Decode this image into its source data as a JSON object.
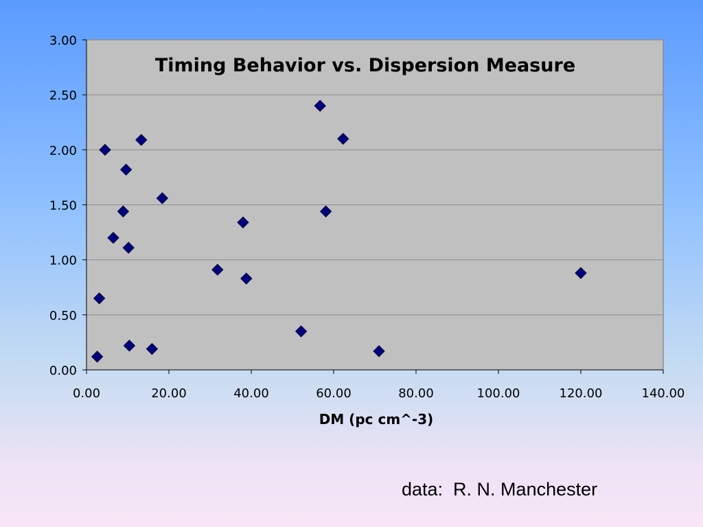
{
  "credit_text": "data:  R. N. Manchester",
  "colors": {
    "plot_background": "#c0c0c0",
    "gridline": "#8c8c8c",
    "marker_fill": "#00007f",
    "marker_outline": "#000033"
  },
  "chart_data": {
    "type": "scatter",
    "title": "Timing Behavior vs. Dispersion Measure",
    "xlabel": "DM (pc cm^-3)",
    "ylabel": "",
    "xlim": [
      0,
      140
    ],
    "ylim": [
      0,
      3
    ],
    "x_ticks": [
      "0.00",
      "20.00",
      "40.00",
      "60.00",
      "80.00",
      "100.00",
      "120.00",
      "140.00"
    ],
    "y_ticks": [
      "0.00",
      "0.50",
      "1.00",
      "1.50",
      "2.00",
      "2.50",
      "3.00"
    ],
    "x_tick_values": [
      0,
      20,
      40,
      60,
      80,
      100,
      120,
      140
    ],
    "y_tick_values": [
      0,
      0.5,
      1,
      1.5,
      2,
      2.5,
      3
    ],
    "grid": "horizontal",
    "legend": "none",
    "marker": "diamond",
    "series": [
      {
        "points": [
          {
            "x": 2.6,
            "y": 0.12
          },
          {
            "x": 3.1,
            "y": 0.65
          },
          {
            "x": 4.5,
            "y": 2.0
          },
          {
            "x": 6.5,
            "y": 1.2
          },
          {
            "x": 8.9,
            "y": 1.44
          },
          {
            "x": 9.6,
            "y": 1.82
          },
          {
            "x": 10.2,
            "y": 1.11
          },
          {
            "x": 10.4,
            "y": 0.22
          },
          {
            "x": 13.3,
            "y": 2.09
          },
          {
            "x": 15.9,
            "y": 0.19
          },
          {
            "x": 18.4,
            "y": 1.56
          },
          {
            "x": 31.8,
            "y": 0.91
          },
          {
            "x": 38.0,
            "y": 1.34
          },
          {
            "x": 38.8,
            "y": 0.83
          },
          {
            "x": 52.1,
            "y": 0.35
          },
          {
            "x": 56.7,
            "y": 2.4
          },
          {
            "x": 58.1,
            "y": 1.44
          },
          {
            "x": 62.3,
            "y": 2.1
          },
          {
            "x": 71.0,
            "y": 0.17
          },
          {
            "x": 120.0,
            "y": 0.88
          }
        ]
      }
    ]
  }
}
